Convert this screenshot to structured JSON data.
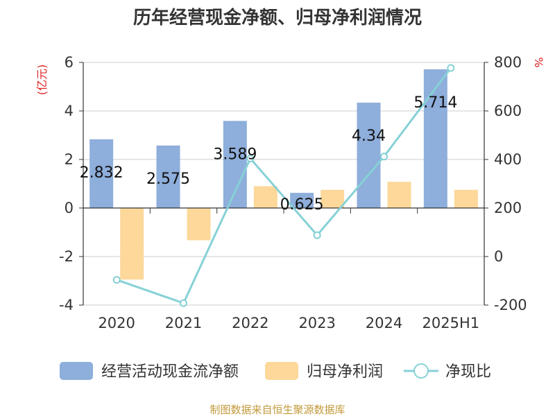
{
  "chart_data": {
    "type": "bar+line",
    "title": "历年经营现金净额、归母净利润情况",
    "categories": [
      "2020",
      "2021",
      "2022",
      "2023",
      "2024",
      "2025H1"
    ],
    "series": [
      {
        "name": "经营活动现金流净额",
        "type": "bar",
        "axis": "left",
        "color": "#8eaedb",
        "values": [
          2.832,
          2.575,
          3.589,
          0.625,
          4.34,
          5.714
        ]
      },
      {
        "name": "归母净利润",
        "type": "bar",
        "axis": "left",
        "color": "#fdd89a",
        "values": [
          -2.95,
          -1.33,
          0.9,
          0.75,
          1.08,
          0.75
        ]
      },
      {
        "name": "净现比",
        "type": "line",
        "axis": "right",
        "color": "#86d1d6",
        "values": [
          -96,
          -192,
          404,
          88,
          412,
          777
        ]
      }
    ],
    "data_labels": [
      "2.832",
      "2.575",
      "3.589",
      "0.625",
      "4.34",
      "5.714"
    ],
    "left_axis": {
      "unit": "(亿元)",
      "ticks": [
        6,
        4,
        2,
        0,
        -2,
        -4
      ],
      "ylim": [
        -4,
        6
      ]
    },
    "right_axis": {
      "unit": "%",
      "ticks": [
        800,
        600,
        400,
        200,
        0,
        -200
      ],
      "ylim": [
        -200,
        800
      ]
    },
    "grid": true,
    "legend_position": "bottom"
  },
  "source": "制图数据来自恒生聚源数据库"
}
